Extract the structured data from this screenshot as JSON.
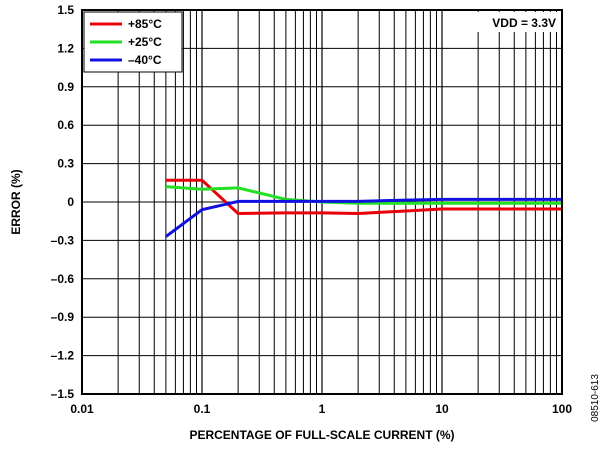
{
  "chart_data": {
    "type": "line",
    "xscale": "log",
    "xlabel": "PERCENTAGE OF FULL-SCALE CURRENT (%)",
    "ylabel": "ERROR (%)",
    "xlim": [
      0.01,
      100
    ],
    "ylim": [
      -1.5,
      1.5
    ],
    "x_ticks": [
      0.01,
      0.1,
      1,
      10,
      100
    ],
    "x_tick_labels": [
      "0.01",
      "0.1",
      "1",
      "10",
      "100"
    ],
    "y_ticks": [
      1.5,
      1.2,
      0.9,
      0.6,
      0.3,
      0,
      -0.3,
      -0.6,
      -0.9,
      -1.2,
      -1.5
    ],
    "y_tick_labels": [
      "1.5",
      "1.2",
      "0.9",
      "0.6",
      "0.3",
      "0",
      "–0.3",
      "–0.6",
      "–0.9",
      "–1.2",
      "–1.5"
    ],
    "grid": true,
    "legend_position": "top-left",
    "annotation": "VDD = 3.3V",
    "figure_id": "08510-613",
    "series": [
      {
        "name": "+85°C",
        "color": "#e8000b",
        "x": [
          0.05,
          0.1,
          0.2,
          0.5,
          1,
          2,
          5,
          10,
          20,
          50,
          100
        ],
        "y": [
          0.17,
          0.17,
          -0.09,
          -0.085,
          -0.085,
          -0.09,
          -0.07,
          -0.055,
          -0.055,
          -0.055,
          -0.055
        ]
      },
      {
        "name": "+25°C",
        "color": "#22e022",
        "x": [
          0.05,
          0.1,
          0.2,
          0.5,
          1,
          2,
          5,
          10,
          20,
          50,
          100
        ],
        "y": [
          0.12,
          0.1,
          0.11,
          0.02,
          0,
          -0.01,
          -0.01,
          -0.01,
          -0.01,
          -0.01,
          -0.01
        ]
      },
      {
        "name": "–40°C",
        "color": "#1010e0",
        "x": [
          0.05,
          0.1,
          0.2,
          0.5,
          1,
          2,
          5,
          10,
          20,
          50,
          100
        ],
        "y": [
          -0.27,
          -0.06,
          0.005,
          0.005,
          0.005,
          0.005,
          0.015,
          0.02,
          0.02,
          0.02,
          0.02
        ]
      }
    ]
  }
}
